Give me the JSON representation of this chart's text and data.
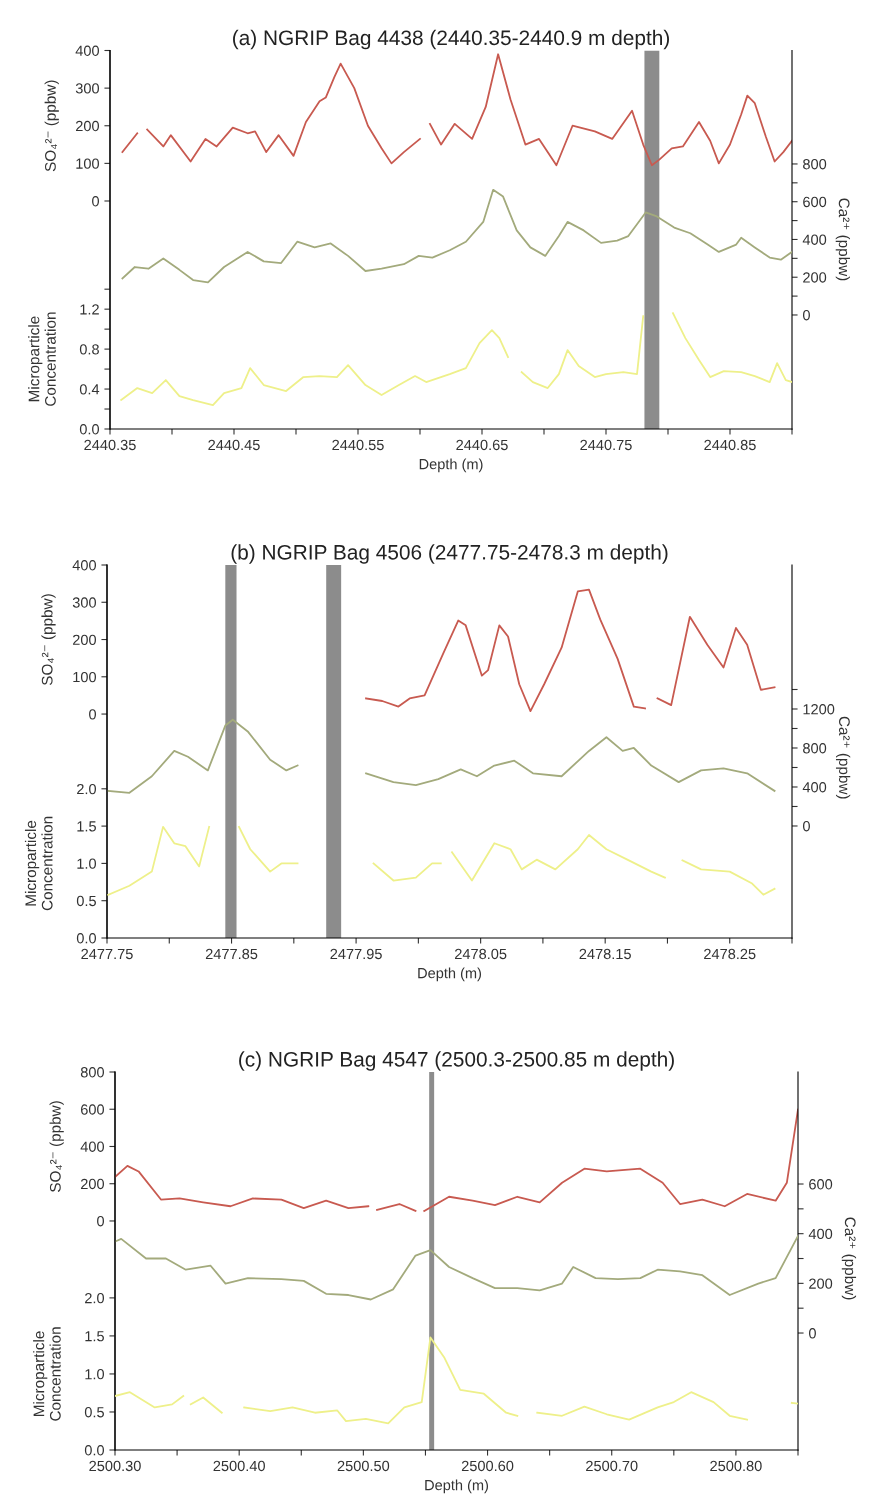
{
  "chart_data": [
    {
      "type": "line",
      "title": "(a) NGRIP Bag 4438 (2440.35-2440.9 m depth)",
      "xlabel": "Depth (m)",
      "ylabel": "SO₄²⁻ (ppbw)",
      "y2label": "Ca²⁺ (ppbw)",
      "y3label": "Microparticle\nConcentration",
      "xlim": [
        2440.35,
        2440.9
      ],
      "xticks": [
        2440.35,
        {
          "value": 2440.4,
          "label": null
        },
        2440.45,
        {
          "value": 2440.5,
          "label": null
        },
        2440.55,
        {
          "value": 2440.6,
          "label": null
        },
        2440.65,
        {
          "value": 2440.7,
          "label": null
        },
        2440.75,
        {
          "value": 2440.8,
          "label": null
        },
        2440.85,
        {
          "value": 2440.9,
          "label": null
        }
      ],
      "ylim": [
        -606,
        400
      ],
      "yticks": [
        0,
        100,
        200,
        300,
        400
      ],
      "y2lim": [
        -604,
        1401
      ],
      "y2ticks": [
        0,
        {
          "value": 100,
          "label": null
        },
        200,
        {
          "value": 300,
          "label": null
        },
        400,
        {
          "value": 500,
          "label": null
        },
        600,
        {
          "value": 700,
          "label": null
        },
        800
      ],
      "y3lim": [
        0,
        3.79
      ],
      "y3ticks": [
        {
          "value": 0,
          "label": "0.0"
        },
        {
          "value": 0.2,
          "label": null
        },
        0.4,
        {
          "value": 0.6,
          "label": null
        },
        0.8,
        {
          "value": 1.0,
          "label": null
        },
        1.2,
        {
          "value": 1.4,
          "label": null
        }
      ],
      "bands": [
        {
          "axis": "x",
          "from": 2440.781,
          "to": 2440.793,
          "color": "#8c8c8c"
        }
      ],
      "series": [
        {
          "axis": "y",
          "color": "#c85a50",
          "x": [
            2440.36,
            2440.372,
            2440.375,
            2440.38,
            2440.393,
            2440.399,
            2440.415,
            2440.427,
            2440.436,
            2440.449,
            2440.461,
            2440.467,
            2440.476,
            2440.486,
            2440.498,
            2440.508,
            2440.519,
            2440.524,
            2440.531,
            2440.536,
            2440.547,
            2440.558,
            2440.569,
            2440.577,
            2440.587,
            2440.6,
            2440.603,
            2440.608,
            2440.617,
            2440.628,
            2440.642,
            2440.653,
            2440.663,
            2440.673,
            2440.685,
            2440.696,
            2440.71,
            2440.723,
            2440.741,
            2440.755,
            2440.771,
            2440.78,
            2440.787,
            2440.793,
            2440.803,
            2440.812,
            2440.825,
            2440.834,
            2440.841,
            2440.85,
            2440.859,
            2440.864,
            2440.87,
            2440.879,
            2440.886,
            2440.893,
            2440.9
          ],
          "values": [
            130,
            180,
            null,
            190,
            145,
            175,
            105,
            165,
            145,
            195,
            180,
            185,
            130,
            175,
            120,
            210,
            265,
            275,
            330,
            365,
            300,
            200,
            140,
            100,
            130,
            165,
            null,
            205,
            150,
            205,
            165,
            250,
            390,
            270,
            150,
            165,
            95,
            200,
            185,
            165,
            240,
            150,
            95,
            110,
            140,
            145,
            210,
            160,
            100,
            150,
            230,
            280,
            260,
            170,
            105,
            130,
            160
          ]
        },
        {
          "axis": "y2",
          "color": "#a3aa7c",
          "x": [
            2440.36,
            2440.37,
            2440.381,
            2440.393,
            2440.406,
            2440.417,
            2440.429,
            2440.442,
            2440.461,
            2440.474,
            2440.488,
            2440.501,
            2440.515,
            2440.528,
            2440.542,
            2440.556,
            2440.569,
            2440.587,
            2440.599,
            2440.61,
            2440.624,
            2440.637,
            2440.651,
            2440.659,
            2440.667,
            2440.678,
            2440.689,
            2440.701,
            2440.712,
            2440.719,
            2440.732,
            2440.746,
            2440.759,
            2440.768,
            2440.782,
            2440.791,
            2440.805,
            2440.818,
            2440.832,
            2440.841,
            2440.855,
            2440.859,
            2440.87,
            2440.882,
            2440.891,
            2440.9
          ],
          "values": [
            194,
            254,
            245,
            299,
            239,
            185,
            173,
            254,
            334,
            284,
            275,
            388,
            358,
            379,
            313,
            233,
            245,
            269,
            313,
            304,
            343,
            388,
            493,
            663,
            627,
            448,
            358,
            313,
            418,
            493,
            448,
            382,
            394,
            418,
            543,
            522,
            463,
            433,
            373,
            334,
            373,
            409,
            358,
            304,
            293,
            334
          ]
        },
        {
          "axis": "y3",
          "color": "#eef08a",
          "x": [
            2440.359,
            2440.372,
            2440.384,
            2440.395,
            2440.406,
            2440.417,
            2440.433,
            2440.442,
            2440.456,
            2440.463,
            2440.474,
            2440.492,
            2440.506,
            2440.519,
            2440.533,
            2440.542,
            2440.556,
            2440.569,
            2440.583,
            2440.596,
            2440.605,
            2440.624,
            2440.637,
            2440.648,
            2440.658,
            2440.664,
            2440.671,
            2440.675,
            2440.682,
            2440.691,
            2440.703,
            2440.712,
            2440.719,
            2440.728,
            2440.741,
            2440.75,
            2440.764,
            2440.775,
            2440.78,
            2440.79,
            2440.804,
            2440.814,
            2440.825,
            2440.834,
            2440.845,
            2440.859,
            2440.87,
            2440.882,
            2440.888,
            2440.895,
            2440.9
          ],
          "values": [
            0.29,
            0.41,
            0.36,
            0.49,
            0.33,
            0.29,
            0.24,
            0.36,
            0.41,
            0.61,
            0.44,
            0.38,
            0.52,
            0.53,
            0.52,
            0.64,
            0.44,
            0.34,
            0.44,
            0.53,
            0.47,
            0.55,
            0.61,
            0.86,
            0.99,
            0.91,
            0.72,
            null,
            0.57,
            0.47,
            0.41,
            0.55,
            0.79,
            0.63,
            0.52,
            0.55,
            0.57,
            0.55,
            1.13,
            null,
            1.16,
            0.91,
            0.69,
            0.52,
            0.58,
            0.57,
            0.53,
            0.47,
            0.66,
            0.49,
            0.47
          ]
        }
      ]
    },
    {
      "type": "line",
      "title": "(b) NGRIP Bag 4506 (2477.75-2478.3 m depth)",
      "xlabel": "Depth (m)",
      "ylabel": "SO₄²⁻ (ppbw)",
      "y2label": "Ca²⁺ (ppbw)",
      "y3label": "Microparticle\nConcentration",
      "xlim": [
        2477.75,
        2478.3
      ],
      "xticks": [
        2477.75,
        {
          "value": 2477.8,
          "label": null
        },
        2477.85,
        {
          "value": 2477.9,
          "label": null
        },
        2477.95,
        {
          "value": 2478.0,
          "label": null
        },
        2478.05,
        {
          "value": 2478.1,
          "label": null
        },
        2478.15,
        {
          "value": 2478.2,
          "label": null
        },
        2478.25,
        {
          "value": 2478.3,
          "label": null
        }
      ],
      "ylim": [
        -601,
        400
      ],
      "yticks": [
        0,
        100,
        200,
        300,
        400
      ],
      "y2lim": [
        -1149,
        2677
      ],
      "y2ticks": [
        0,
        {
          "value": 200,
          "label": null
        },
        400,
        {
          "value": 600,
          "label": null
        },
        800,
        {
          "value": 1000,
          "label": null
        },
        1200,
        {
          "value": 1400,
          "label": null
        }
      ],
      "y3lim": [
        0,
        5.0
      ],
      "y3ticks": [
        {
          "value": 0,
          "label": "0.0"
        },
        0.5,
        {
          "value": 1.0,
          "label": "1.0"
        },
        1.5,
        {
          "value": 2.0,
          "label": "2.0"
        }
      ],
      "bands": [
        {
          "axis": "x",
          "from": 2477.845,
          "to": 2477.854,
          "color": "#8c8c8c"
        },
        {
          "axis": "x",
          "from": 2477.926,
          "to": 2477.938,
          "color": "#8c8c8c"
        }
      ],
      "series": [
        {
          "axis": "y",
          "color": "#c85a50",
          "x": [
            2477.958,
            2477.971,
            2477.984,
            2477.993,
            2478.005,
            2478.02,
            2478.032,
            2478.038,
            2478.051,
            2478.056,
            2478.065,
            2478.072,
            2478.081,
            2478.09,
            2478.101,
            2478.115,
            2478.128,
            2478.137,
            2478.146,
            2478.16,
            2478.173,
            2478.182,
            2478.187,
            2478.192,
            2478.203,
            2478.218,
            2478.232,
            2478.245,
            2478.255,
            2478.264,
            2478.275,
            2478.286
          ],
          "values": [
            42,
            35,
            20,
            42,
            50,
            163,
            251,
            238,
            103,
            118,
            238,
            208,
            80,
            8,
            80,
            178,
            329,
            334,
            254,
            148,
            20,
            15,
            null,
            42,
            24,
            261,
            186,
            125,
            231,
            186,
            65,
            72
          ]
        },
        {
          "axis": "y2",
          "color": "#a3aa7c",
          "x": [
            2477.751,
            2477.768,
            2477.786,
            2477.804,
            2477.815,
            2477.831,
            2477.845,
            2477.851,
            2477.863,
            2477.881,
            2477.894,
            2477.903,
            2477.93,
            2477.958,
            2477.98,
            2477.998,
            2478.016,
            2478.034,
            2478.047,
            2478.061,
            2478.077,
            2478.092,
            2478.115,
            2478.137,
            2478.151,
            2478.164,
            2478.173,
            2478.187,
            2478.209,
            2478.227,
            2478.245,
            2478.264,
            2478.286
          ],
          "values": [
            360,
            340,
            510,
            770,
            710,
            570,
            1030,
            1090,
            970,
            680,
            570,
            620,
            null,
            540,
            450,
            420,
            480,
            580,
            510,
            620,
            670,
            540,
            510,
            770,
            910,
            770,
            800,
            620,
            450,
            570,
            590,
            540,
            360
          ]
        },
        {
          "axis": "y3",
          "color": "#eef08a",
          "x": [
            2477.751,
            2477.768,
            2477.786,
            2477.795,
            2477.804,
            2477.813,
            2477.824,
            2477.832,
            2477.84,
            2477.856,
            2477.865,
            2477.881,
            2477.89,
            2477.903,
            2477.93,
            2477.964,
            2477.98,
            2477.998,
            2478.011,
            2478.018,
            2478.022,
            2478.027,
            2478.043,
            2478.061,
            2478.074,
            2478.083,
            2478.095,
            2478.11,
            2478.128,
            2478.137,
            2478.151,
            2478.169,
            2478.187,
            2478.198,
            2478.2,
            2478.212,
            2478.227,
            2478.25,
            2478.268,
            2478.277,
            2478.286
          ],
          "values": [
            0.58,
            0.7,
            0.89,
            1.49,
            1.27,
            1.23,
            0.96,
            1.49,
            null,
            1.49,
            1.19,
            0.89,
            1.0,
            1.0,
            null,
            1.0,
            0.77,
            0.81,
            1.0,
            1.0,
            null,
            1.15,
            0.77,
            1.27,
            1.19,
            0.92,
            1.05,
            0.92,
            1.19,
            1.38,
            1.19,
            1.04,
            0.89,
            0.81,
            null,
            1.04,
            0.92,
            0.89,
            0.73,
            0.58,
            0.66
          ]
        }
      ]
    },
    {
      "type": "line",
      "title": "(c) NGRIP Bag 4547 (2500.3-2500.85 m depth)",
      "xlabel": "Depth (m)",
      "ylabel": "SO₄²⁻ (ppbw)",
      "y2label": "Ca²⁺ (ppbw)",
      "y3label": "Microparticle\nConcentration",
      "xlim": [
        2500.3,
        2500.85
      ],
      "xticks": [
        {
          "value": 2500.3,
          "label": "2500.30"
        },
        {
          "value": 2500.35,
          "label": null
        },
        {
          "value": 2500.4,
          "label": "2500.40"
        },
        {
          "value": 2500.45,
          "label": null
        },
        {
          "value": 2500.5,
          "label": "2500.50"
        },
        {
          "value": 2500.55,
          "label": null
        },
        {
          "value": 2500.6,
          "label": "2500.60"
        },
        {
          "value": 2500.65,
          "label": null
        },
        {
          "value": 2500.7,
          "label": "2500.70"
        },
        {
          "value": 2500.75,
          "label": null
        },
        {
          "value": 2500.8,
          "label": "2500.80"
        },
        {
          "value": 2500.85,
          "label": null
        }
      ],
      "ylim": [
        -1230,
        800
      ],
      "yticks": [
        0,
        200,
        400,
        600,
        800
      ],
      "y2lim": [
        -471,
        1051
      ],
      "y2ticks": [
        0,
        {
          "value": 100,
          "label": null
        },
        200,
        {
          "value": 300,
          "label": null
        },
        400,
        {
          "value": 500,
          "label": null
        },
        600
      ],
      "y3lim": [
        0,
        4.97
      ],
      "y3ticks": [
        {
          "value": 0,
          "label": "0.0"
        },
        0.5,
        {
          "value": 1.0,
          "label": "1.0"
        },
        1.5,
        {
          "value": 2.0,
          "label": "2.0"
        }
      ],
      "bands": [
        {
          "axis": "x",
          "from": 2500.553,
          "to": 2500.557,
          "color": "#8c8c8c"
        }
      ],
      "series": [
        {
          "axis": "y",
          "color": "#c85a50",
          "x": [
            2500.3,
            2500.31,
            2500.319,
            2500.337,
            2500.352,
            2500.371,
            2500.393,
            2500.411,
            2500.434,
            2500.452,
            2500.47,
            2500.488,
            2500.504,
            2500.507,
            2500.511,
            2500.529,
            2500.542,
            2500.545,
            2500.549,
            2500.569,
            2500.588,
            2500.606,
            2500.624,
            2500.642,
            2500.66,
            2500.678,
            2500.696,
            2500.723,
            2500.741,
            2500.755,
            2500.773,
            2500.791,
            2500.809,
            2500.832,
            2500.841,
            2500.85
          ],
          "values": [
            236,
            296,
            266,
            115,
            121,
            100,
            79,
            121,
            115,
            69,
            109,
            69,
            79,
            null,
            60,
            91,
            54,
            null,
            54,
            130,
            109,
            85,
            130,
            100,
            205,
            281,
            266,
            281,
            205,
            91,
            115,
            79,
            145,
            109,
            205,
            598
          ]
        },
        {
          "axis": "y2",
          "color": "#a3aa7c",
          "x": [
            2500.3,
            2500.305,
            2500.325,
            2500.341,
            2500.357,
            2500.377,
            2500.389,
            2500.407,
            2500.434,
            2500.452,
            2500.47,
            2500.488,
            2500.506,
            2500.524,
            2500.542,
            2500.554,
            2500.569,
            2500.588,
            2500.606,
            2500.624,
            2500.642,
            2500.66,
            2500.669,
            2500.687,
            2500.705,
            2500.723,
            2500.737,
            2500.755,
            2500.773,
            2500.795,
            2500.818,
            2500.832,
            2500.85
          ],
          "values": [
            368,
            379,
            300,
            300,
            255,
            271,
            199,
            221,
            217,
            210,
            158,
            153,
            135,
            176,
            312,
            334,
            266,
            221,
            181,
            181,
            172,
            199,
            266,
            221,
            217,
            221,
            255,
            248,
            233,
            153,
            199,
            221,
            391
          ]
        },
        {
          "axis": "y3",
          "color": "#eef08a",
          "x": [
            2500.3,
            2500.312,
            2500.332,
            2500.346,
            2500.355,
            2500.358,
            2500.361,
            2500.371,
            2500.386,
            2500.39,
            2500.404,
            2500.425,
            2500.443,
            2500.461,
            2500.479,
            2500.486,
            2500.502,
            2500.52,
            2500.533,
            2500.547,
            2500.554,
            2500.565,
            2500.578,
            2500.597,
            2500.615,
            2500.624,
            2500.63,
            2500.64,
            2500.66,
            2500.678,
            2500.696,
            2500.714,
            2500.737,
            2500.75,
            2500.764,
            2500.782,
            2500.795,
            2500.809,
            2500.83,
            2500.845,
            2500.85
          ],
          "values": [
            0.71,
            0.76,
            0.56,
            0.6,
            0.71,
            null,
            0.6,
            0.69,
            0.49,
            null,
            0.56,
            0.51,
            0.56,
            0.49,
            0.52,
            0.38,
            0.41,
            0.35,
            0.56,
            0.63,
            1.48,
            1.22,
            0.79,
            0.74,
            0.49,
            0.45,
            null,
            0.49,
            0.45,
            0.57,
            0.47,
            0.4,
            0.56,
            0.63,
            0.76,
            0.63,
            0.45,
            0.4,
            null,
            0.62,
            0.61
          ]
        }
      ]
    }
  ]
}
